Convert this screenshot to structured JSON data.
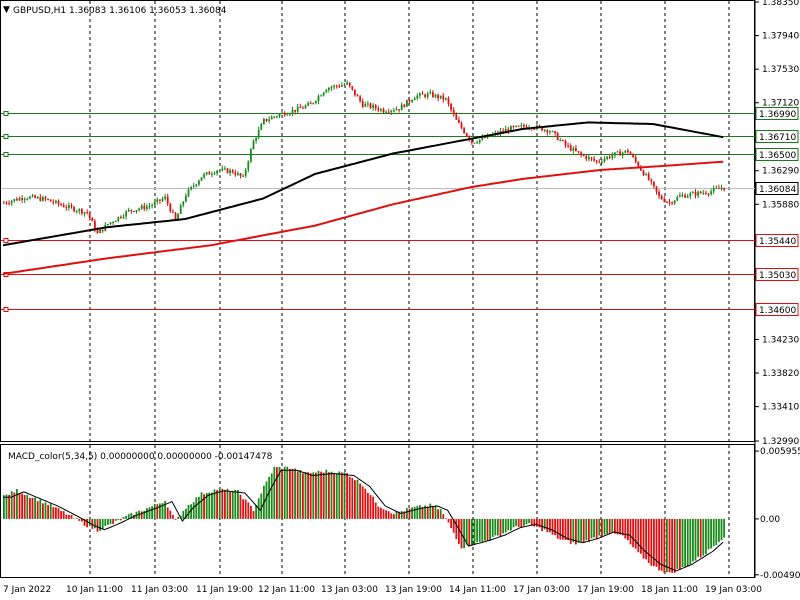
{
  "header": {
    "symbol_line": "GBPUSD,H1  1.36083 1.36106 1.36053 1.36084",
    "macd_line": "MACD_color(5,34,5) 0.00000000 0.00000000 -0.00147478"
  },
  "colors": {
    "background": "#ffffff",
    "bull": "#1a8a1a",
    "bear": "#e01010",
    "ma_fast": "#000000",
    "ma_slow": "#e01010",
    "support_line": "#e01010",
    "resistance_line": "#1a7a1a",
    "current_price_line": "#bdbdbd"
  },
  "chart_data": [
    {
      "type": "candlestick",
      "title": "GBPUSD,H1",
      "ohlc_last": {
        "open": 1.36083,
        "high": 1.36106,
        "low": 1.36053,
        "close": 1.36084
      },
      "ylim": [
        1.3299,
        1.3835
      ],
      "price_axis_ticks": [
        "1.38350",
        "1.37940",
        "1.37530",
        "1.37120",
        "1.36290",
        "1.35880",
        "1.34230",
        "1.33820",
        "1.33410",
        "1.32990"
      ],
      "time_axis_ticks": [
        "7 Jan 2022",
        "10 Jan 11:00",
        "11 Jan 03:00",
        "11 Jan 19:00",
        "12 Jan 11:00",
        "13 Jan 03:00",
        "13 Jan 19:00",
        "14 Jan 11:00",
        "17 Jan 03:00",
        "17 Jan 19:00",
        "18 Jan 11:00",
        "19 Jan 03:00"
      ],
      "horizontal_levels": [
        {
          "value": 1.3699,
          "label": "1.36990",
          "kind": "resistance"
        },
        {
          "value": 1.3671,
          "label": "1.36710",
          "kind": "resistance"
        },
        {
          "value": 1.365,
          "label": "1.36500",
          "kind": "resistance"
        },
        {
          "value": 1.36084,
          "label": "1.36084",
          "kind": "current"
        },
        {
          "value": 1.3544,
          "label": "1.35440",
          "kind": "support"
        },
        {
          "value": 1.3503,
          "label": "1.35030",
          "kind": "support"
        },
        {
          "value": 1.346,
          "label": "1.34600",
          "kind": "support"
        }
      ],
      "close_path": [
        [
          0,
          1.359
        ],
        [
          8,
          1.3597
        ],
        [
          16,
          1.3594
        ],
        [
          24,
          1.3585
        ],
        [
          32,
          1.3578
        ],
        [
          36,
          1.3552
        ],
        [
          40,
          1.3564
        ],
        [
          48,
          1.358
        ],
        [
          56,
          1.3586
        ],
        [
          62,
          1.3596
        ],
        [
          66,
          1.3568
        ],
        [
          70,
          1.36
        ],
        [
          76,
          1.3622
        ],
        [
          82,
          1.363
        ],
        [
          88,
          1.3628
        ],
        [
          92,
          1.362
        ],
        [
          96,
          1.3665
        ],
        [
          100,
          1.369
        ],
        [
          106,
          1.3698
        ],
        [
          112,
          1.3703
        ],
        [
          118,
          1.371
        ],
        [
          124,
          1.373
        ],
        [
          132,
          1.3735
        ],
        [
          138,
          1.371
        ],
        [
          146,
          1.3703
        ],
        [
          152,
          1.3705
        ],
        [
          158,
          1.372
        ],
        [
          164,
          1.3722
        ],
        [
          170,
          1.3716
        ],
        [
          174,
          1.369
        ],
        [
          180,
          1.3664
        ],
        [
          186,
          1.367
        ],
        [
          194,
          1.368
        ],
        [
          202,
          1.3684
        ],
        [
          210,
          1.3678
        ],
        [
          216,
          1.366
        ],
        [
          222,
          1.3648
        ],
        [
          228,
          1.364
        ],
        [
          234,
          1.3648
        ],
        [
          240,
          1.3653
        ],
        [
          244,
          1.3635
        ],
        [
          248,
          1.3618
        ],
        [
          252,
          1.3597
        ],
        [
          256,
          1.359
        ],
        [
          260,
          1.3598
        ],
        [
          266,
          1.3601
        ],
        [
          272,
          1.3604
        ],
        [
          276,
          1.36084
        ]
      ],
      "series": [
        {
          "name": "",
          "kind": "ma_fast",
          "points": [
            [
              0,
              1.3538
            ],
            [
              40,
              1.356
            ],
            [
              70,
              1.357
            ],
            [
              100,
              1.3595
            ],
            [
              120,
              1.3625
            ],
            [
              150,
              1.365
            ],
            [
              170,
              1.3662
            ],
            [
              200,
              1.368
            ],
            [
              225,
              1.3688
            ],
            [
              250,
              1.3686
            ],
            [
              277,
              1.367
            ]
          ]
        },
        {
          "name": "",
          "kind": "ma_slow",
          "points": [
            [
              0,
              1.3503
            ],
            [
              40,
              1.3522
            ],
            [
              80,
              1.3538
            ],
            [
              120,
              1.3562
            ],
            [
              150,
              1.3588
            ],
            [
              180,
              1.3609
            ],
            [
              200,
              1.3619
            ],
            [
              230,
              1.363
            ],
            [
              250,
              1.3634
            ],
            [
              277,
              1.364
            ]
          ]
        }
      ]
    },
    {
      "type": "bar",
      "title": "MACD_color(5,34,5)",
      "ylim": [
        -0.0051,
        0.0064
      ],
      "y_axis_ticks": [
        "0.0059554",
        "0.00",
        "-0.004906"
      ],
      "histogram_path": [
        [
          0,
          0.002
        ],
        [
          5,
          0.0025
        ],
        [
          10,
          0.002
        ],
        [
          18,
          0.0012
        ],
        [
          26,
          0.0002
        ],
        [
          32,
          -0.0006
        ],
        [
          36,
          -0.001
        ],
        [
          42,
          -0.0004
        ],
        [
          48,
          0.0003
        ],
        [
          56,
          0.001
        ],
        [
          62,
          0.0016
        ],
        [
          66,
          -0.0002
        ],
        [
          70,
          0.001
        ],
        [
          76,
          0.0022
        ],
        [
          82,
          0.0026
        ],
        [
          90,
          0.0024
        ],
        [
          96,
          0.0008
        ],
        [
          100,
          0.0028
        ],
        [
          104,
          0.0045
        ],
        [
          110,
          0.0045
        ],
        [
          116,
          0.004
        ],
        [
          124,
          0.0042
        ],
        [
          132,
          0.004
        ],
        [
          138,
          0.003
        ],
        [
          144,
          0.0012
        ],
        [
          150,
          0.0005
        ],
        [
          158,
          0.001
        ],
        [
          164,
          0.0012
        ],
        [
          168,
          0.0008
        ],
        [
          172,
          -0.0008
        ],
        [
          176,
          -0.0025
        ],
        [
          184,
          -0.002
        ],
        [
          190,
          -0.0015
        ],
        [
          196,
          -0.0008
        ],
        [
          202,
          -0.0005
        ],
        [
          208,
          -0.001
        ],
        [
          214,
          -0.0018
        ],
        [
          220,
          -0.0022
        ],
        [
          226,
          -0.0018
        ],
        [
          232,
          -0.0012
        ],
        [
          238,
          -0.0015
        ],
        [
          244,
          -0.003
        ],
        [
          250,
          -0.0042
        ],
        [
          256,
          -0.0048
        ],
        [
          262,
          -0.0042
        ],
        [
          270,
          -0.003
        ],
        [
          277,
          -0.0015
        ]
      ]
    }
  ]
}
